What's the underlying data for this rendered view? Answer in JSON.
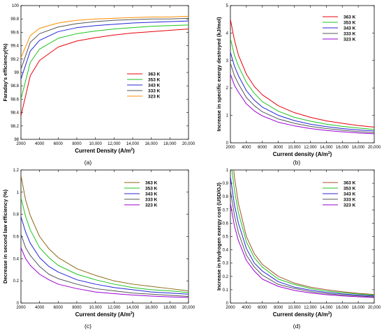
{
  "chart_data": [
    {
      "panel_label": "(a)",
      "type": "line",
      "xlabel": "Current Density (A/m²)",
      "ylabel": "Faraday's efficiency(%)",
      "xlim": [
        2000,
        20000
      ],
      "ylim": [
        98,
        100
      ],
      "x_ticks": [
        2000,
        4000,
        6000,
        8000,
        10000,
        12000,
        14000,
        16000,
        18000,
        20000
      ],
      "x_tick_labels": [
        "2000",
        "4000",
        "6000",
        "8000",
        "10,000",
        "12,000",
        "14,000",
        "16,000",
        "18,000",
        "20,000"
      ],
      "y_ticks": [
        98,
        98.2,
        98.4,
        98.6,
        98.8,
        99,
        99.2,
        99.4,
        99.6,
        99.8,
        100
      ],
      "y_tick_labels": [
        "98",
        "98.2",
        "98.4",
        "98.6",
        "98.8",
        "99",
        "99.2",
        "99.4",
        "99.6",
        "99.8",
        "100"
      ],
      "legend_position": "right-center",
      "x": [
        2000,
        3000,
        4000,
        6000,
        8000,
        10000,
        12000,
        14000,
        16000,
        18000,
        20000
      ],
      "series": [
        {
          "name": "363 K",
          "color": "#e8000b",
          "values": [
            98.35,
            98.95,
            99.18,
            99.38,
            99.47,
            99.52,
            99.56,
            99.59,
            99.61,
            99.63,
            99.65
          ]
        },
        {
          "name": "353 K",
          "color": "#1ec31e",
          "values": [
            98.6,
            99.15,
            99.35,
            99.51,
            99.58,
            99.62,
            99.65,
            99.67,
            99.69,
            99.7,
            99.71
          ]
        },
        {
          "name": "343 K",
          "color": "#2424d6",
          "values": [
            98.9,
            99.32,
            99.48,
            99.61,
            99.67,
            99.7,
            99.72,
            99.74,
            99.75,
            99.76,
            99.77
          ]
        },
        {
          "name": "333 K",
          "color": "#555555",
          "values": [
            99.05,
            99.45,
            99.58,
            99.68,
            99.73,
            99.76,
            99.78,
            99.79,
            99.8,
            99.8,
            99.81
          ]
        },
        {
          "name": "323 K",
          "color": "#ff8c00",
          "values": [
            99.22,
            99.55,
            99.66,
            99.74,
            99.78,
            99.8,
            99.81,
            99.82,
            99.83,
            99.83,
            99.84
          ]
        }
      ]
    },
    {
      "panel_label": "(b)",
      "type": "line",
      "xlabel": "Current density (A/m²)",
      "ylabel": "Increase in specific exergy destroyed (kJ/mol)",
      "xlim": [
        2000,
        20000
      ],
      "ylim": [
        0,
        5
      ],
      "x_ticks": [
        2000,
        4000,
        6000,
        8000,
        10000,
        12000,
        14000,
        16000,
        18000,
        20000
      ],
      "x_tick_labels": [
        "2000",
        "4000",
        "6000",
        "8000",
        "10,000",
        "12,000",
        "14,000",
        "16,000",
        "18,000",
        "20,000"
      ],
      "y_ticks": [
        0,
        1,
        2,
        3,
        4,
        5
      ],
      "y_tick_labels": [
        "0",
        "1",
        "2",
        "3",
        "4",
        "5"
      ],
      "legend_position": "top-right",
      "x": [
        2000,
        2500,
        3000,
        4000,
        5000,
        6000,
        8000,
        10000,
        12000,
        14000,
        16000,
        18000,
        20000
      ],
      "series": [
        {
          "name": "363 K",
          "color": "#e8000b",
          "values": [
            4.5,
            3.75,
            3.2,
            2.5,
            2.05,
            1.75,
            1.35,
            1.1,
            0.93,
            0.8,
            0.71,
            0.63,
            0.57
          ]
        },
        {
          "name": "353 K",
          "color": "#1ec31e",
          "values": [
            3.8,
            3.2,
            2.8,
            2.2,
            1.8,
            1.5,
            1.15,
            0.93,
            0.79,
            0.68,
            0.6,
            0.54,
            0.49
          ]
        },
        {
          "name": "343 K",
          "color": "#2424d6",
          "values": [
            3.3,
            2.8,
            2.45,
            1.9,
            1.55,
            1.3,
            1.0,
            0.81,
            0.68,
            0.59,
            0.52,
            0.47,
            0.43
          ]
        },
        {
          "name": "333 K",
          "color": "#555555",
          "values": [
            2.9,
            2.45,
            2.15,
            1.65,
            1.35,
            1.13,
            0.87,
            0.71,
            0.6,
            0.52,
            0.46,
            0.41,
            0.37
          ]
        },
        {
          "name": "323 K",
          "color": "#9b00d3",
          "values": [
            2.5,
            2.1,
            1.85,
            1.42,
            1.16,
            0.98,
            0.75,
            0.62,
            0.52,
            0.45,
            0.4,
            0.36,
            0.33
          ]
        }
      ]
    },
    {
      "panel_label": "(c)",
      "type": "line",
      "xlabel": "Current density (A/m²)",
      "ylabel": "Decrease in second law efficiency (%)",
      "xlim": [
        2000,
        20000
      ],
      "ylim": [
        0,
        1.2
      ],
      "x_ticks": [
        2000,
        4000,
        6000,
        8000,
        10000,
        12000,
        14000,
        16000,
        18000,
        20000
      ],
      "x_tick_labels": [
        "2000",
        "4000",
        "6000",
        "8000",
        "10,000",
        "12,000",
        "14,000",
        "16,000",
        "18,000",
        "20,000"
      ],
      "y_ticks": [
        0,
        0.2,
        0.4,
        0.6,
        0.8,
        1,
        1.2
      ],
      "y_tick_labels": [
        "0",
        "0.2",
        "0.4",
        "0.6",
        "0.8",
        "1",
        "1.2"
      ],
      "legend_position": "top-right",
      "x": [
        2000,
        2500,
        3000,
        4000,
        5000,
        6000,
        8000,
        10000,
        12000,
        14000,
        16000,
        18000,
        20000
      ],
      "series": [
        {
          "name": "363 K",
          "color": "#8b6914",
          "values": [
            1.15,
            0.93,
            0.79,
            0.6,
            0.49,
            0.41,
            0.31,
            0.25,
            0.2,
            0.17,
            0.15,
            0.13,
            0.11
          ]
        },
        {
          "name": "353 K",
          "color": "#1ec31e",
          "values": [
            0.95,
            0.78,
            0.66,
            0.5,
            0.41,
            0.34,
            0.26,
            0.21,
            0.17,
            0.14,
            0.12,
            0.11,
            0.095
          ]
        },
        {
          "name": "343 K",
          "color": "#2424d6",
          "values": [
            0.78,
            0.64,
            0.54,
            0.41,
            0.33,
            0.28,
            0.21,
            0.17,
            0.14,
            0.12,
            0.1,
            0.09,
            0.08
          ]
        },
        {
          "name": "333 K",
          "color": "#555555",
          "values": [
            0.62,
            0.5,
            0.43,
            0.33,
            0.26,
            0.22,
            0.17,
            0.13,
            0.11,
            0.09,
            0.08,
            0.07,
            0.06
          ]
        },
        {
          "name": "323 K",
          "color": "#9b00d3",
          "values": [
            0.5,
            0.4,
            0.34,
            0.26,
            0.21,
            0.17,
            0.13,
            0.1,
            0.085,
            0.072,
            0.063,
            0.056,
            0.05
          ]
        }
      ]
    },
    {
      "panel_label": "(d)",
      "type": "line",
      "xlabel": "Current density (A/m²)",
      "ylabel": "Increase in Hydrogen exergy cost (USD/GJ)",
      "xlim": [
        2000,
        20000
      ],
      "ylim": [
        0,
        1
      ],
      "x_ticks": [
        2000,
        4000,
        6000,
        8000,
        10000,
        12000,
        14000,
        16000,
        18000,
        20000
      ],
      "x_tick_labels": [
        "2000",
        "4000",
        "6000",
        "8000",
        "10,000",
        "12,000",
        "14,000",
        "16,000",
        "18,000",
        "20,000"
      ],
      "y_ticks": [
        0,
        0.1,
        0.2,
        0.3,
        0.4,
        0.5,
        0.6,
        0.7,
        0.8,
        0.9,
        1
      ],
      "y_tick_labels": [
        "0",
        "0.1",
        "0.2",
        "0.3",
        "0.4",
        "0.5",
        "0.6",
        "0.7",
        "0.8",
        "0.9",
        "1"
      ],
      "legend_position": "top-right",
      "x": [
        2000,
        2500,
        3000,
        4000,
        5000,
        6000,
        8000,
        10000,
        12000,
        14000,
        16000,
        18000,
        20000
      ],
      "series": [
        {
          "name": "363 K",
          "color": "#a0522d",
          "values": [
            1.25,
            0.95,
            0.75,
            0.5,
            0.37,
            0.29,
            0.2,
            0.15,
            0.12,
            0.1,
            0.085,
            0.073,
            0.064
          ]
        },
        {
          "name": "353 K",
          "color": "#1ec31e",
          "values": [
            1.1,
            0.85,
            0.68,
            0.46,
            0.34,
            0.27,
            0.18,
            0.14,
            0.11,
            0.09,
            0.078,
            0.068,
            0.059
          ]
        },
        {
          "name": "343 K",
          "color": "#2424d6",
          "values": [
            0.95,
            0.74,
            0.6,
            0.41,
            0.3,
            0.24,
            0.16,
            0.12,
            0.097,
            0.08,
            0.069,
            0.06,
            0.053
          ]
        },
        {
          "name": "333 K",
          "color": "#555555",
          "values": [
            0.85,
            0.66,
            0.53,
            0.36,
            0.27,
            0.21,
            0.14,
            0.11,
            0.086,
            0.071,
            0.061,
            0.053,
            0.047
          ]
        },
        {
          "name": "323 K",
          "color": "#9b00d3",
          "values": [
            0.75,
            0.58,
            0.47,
            0.32,
            0.24,
            0.18,
            0.125,
            0.095,
            0.076,
            0.063,
            0.054,
            0.047,
            0.041
          ]
        }
      ]
    }
  ]
}
